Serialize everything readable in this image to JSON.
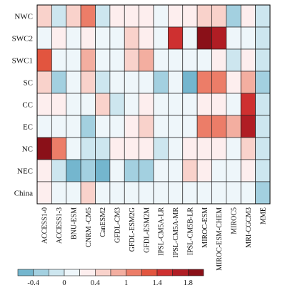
{
  "chart_data": {
    "type": "heatmap",
    "title": "",
    "xlabel": "",
    "ylabel": "",
    "x_categories": [
      "ACCESS1-0",
      "ACCESS1-3",
      "BNU-ESM",
      "CNRM -CM5",
      "CanESM2",
      "GFDL-CM3",
      "GFDL-ESM2G",
      "GFDL-ESM2M",
      "IPSL-CM5A-LR",
      "IPSL-CM5A-MR",
      "IPSL-CM5B-LR",
      "MIROC-ESM",
      "MIROC-ESM-CHEM",
      "MIROC5",
      "MRI-CGCM3",
      "MME"
    ],
    "y_categories": [
      "NWC",
      "SWC2",
      "SWC1",
      "SC",
      "CC",
      "EC",
      "NC",
      "NEC",
      "China"
    ],
    "values": [
      [
        0.5,
        -0.1,
        0.5,
        1.1,
        -0.1,
        0.2,
        0.2,
        0.2,
        0.1,
        0.2,
        0.2,
        0.5,
        0.5,
        -0.4,
        0.2,
        -0.2
      ],
      [
        0.0,
        0.2,
        0.1,
        0.2,
        0.1,
        0.0,
        0.5,
        0.2,
        0.0,
        1.5,
        0.0,
        1.8,
        1.7,
        0.1,
        0.0,
        -0.2
      ],
      [
        1.3,
        0.1,
        0.0,
        0.7,
        0.1,
        0.0,
        0.4,
        0.7,
        0.0,
        0.1,
        0.0,
        0.1,
        0.2,
        -0.1,
        0.3,
        -0.2
      ],
      [
        0.5,
        -0.4,
        0.1,
        0.5,
        -0.1,
        0.0,
        0.1,
        0.1,
        -0.4,
        0.0,
        -0.5,
        1.1,
        1.1,
        0.2,
        0.6,
        -0.3
      ],
      [
        0.2,
        0.3,
        0.0,
        0.0,
        0.5,
        -0.1,
        0.1,
        0.2,
        0.0,
        0.0,
        0.0,
        0.2,
        0.2,
        0.1,
        1.5,
        -0.2
      ],
      [
        0.1,
        0.0,
        0.0,
        -0.3,
        0.1,
        0.1,
        0.2,
        0.4,
        0.1,
        0.1,
        0.0,
        1.1,
        1.1,
        0.8,
        1.6,
        -0.2
      ],
      [
        1.9,
        1.1,
        0.0,
        -0.1,
        -0.1,
        0.2,
        0.2,
        0.3,
        -0.2,
        0.1,
        0.2,
        0.2,
        0.2,
        0.0,
        0.4,
        -0.1
      ],
      [
        0.3,
        -0.1,
        -0.5,
        -0.3,
        -0.5,
        0.1,
        -0.3,
        -0.3,
        0.1,
        0.1,
        0.4,
        0.2,
        0.1,
        0.1,
        0.2,
        -0.2
      ],
      [
        0.2,
        0.0,
        0.0,
        0.4,
        0.0,
        0.0,
        0.1,
        0.1,
        0.0,
        0.0,
        0.0,
        0.1,
        0.1,
        0.0,
        0.1,
        -0.3
      ]
    ],
    "colorbar": {
      "boundaries": [
        -0.6,
        -0.4,
        -0.2,
        0,
        0.2,
        0.4,
        0.6,
        1.0,
        1.2,
        1.4,
        1.6,
        1.8,
        2.0
      ],
      "colors": [
        "#74b6ce",
        "#a3d0e0",
        "#cde6ef",
        "#eef6fa",
        "#fdeeee",
        "#f9d2cb",
        "#f3aea0",
        "#ec7d68",
        "#e2553f",
        "#ce3030",
        "#b01d24",
        "#8a1018"
      ],
      "tick_labels": [
        "-0.4",
        "0",
        "0.4",
        "1",
        "1.4",
        "1.8"
      ],
      "tick_values": [
        -0.4,
        0,
        0.4,
        1.0,
        1.4,
        1.8
      ]
    }
  }
}
